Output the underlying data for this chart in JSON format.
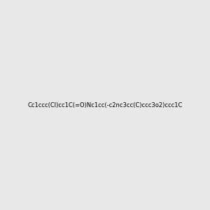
{
  "smiles": "Cc1ccc(Cl)cc1C(=O)Nc1cc(-c2nc3cc(C)ccc3o2)ccc1C",
  "title": "",
  "background_color": "#e8e8e8",
  "img_size": [
    300,
    300
  ],
  "atom_colors": {
    "N": [
      0,
      0,
      255
    ],
    "O": [
      255,
      0,
      0
    ],
    "Cl": [
      0,
      180,
      0
    ]
  }
}
